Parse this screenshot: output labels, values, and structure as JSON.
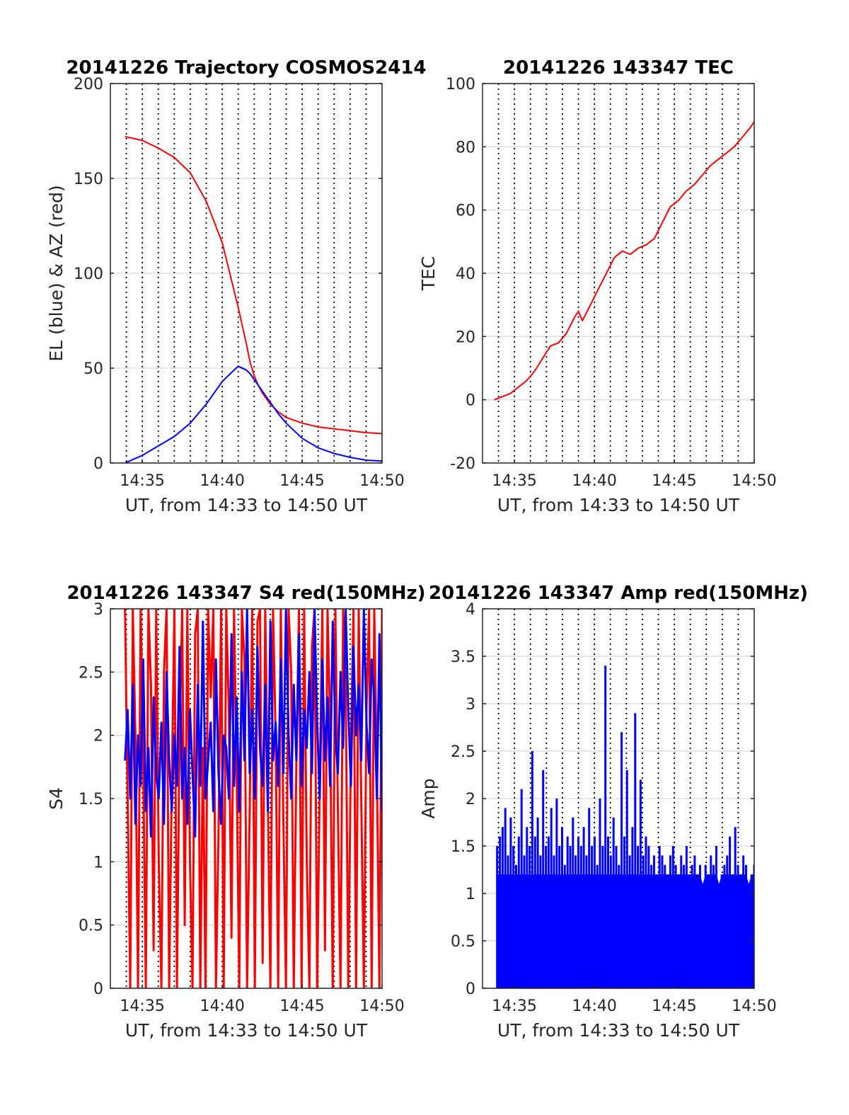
{
  "chart_data": [
    {
      "id": "trajectory",
      "type": "line",
      "title": "20141226 Trajectory COSMOS2414",
      "xlabel": "UT, from 14:33 to 14:50 UT",
      "ylabel": "EL (blue) & AZ (red)",
      "xlim": [
        14.55,
        14.8333
      ],
      "ylim": [
        0,
        200
      ],
      "xticks": [
        14.5833,
        14.6667,
        14.75,
        14.8333
      ],
      "xticklabels": [
        "14:35",
        "14:40",
        "14:45",
        "14:50"
      ],
      "yticks": [
        0,
        50,
        100,
        150,
        200
      ],
      "yticklabels": [
        "0",
        "50",
        "100",
        "150",
        "200"
      ],
      "grid": true,
      "series": [
        {
          "color": "#ff0000",
          "x": [
            14.5653,
            14.5833,
            14.6,
            14.6167,
            14.6333,
            14.65,
            14.6667,
            14.6833,
            14.6917,
            14.6958,
            14.7,
            14.7042,
            14.7083,
            14.7167,
            14.725,
            14.7333,
            14.75,
            14.7667,
            14.7833,
            14.8,
            14.8167,
            14.8333
          ],
          "values": [
            172,
            170,
            166,
            161,
            153,
            138,
            116,
            82,
            63,
            53,
            46,
            41,
            37,
            31,
            27,
            24,
            21,
            19,
            18,
            17,
            16,
            15.5
          ]
        },
        {
          "color": "#0000ff",
          "x": [
            14.5653,
            14.5833,
            14.6,
            14.6167,
            14.6333,
            14.65,
            14.6667,
            14.675,
            14.6833,
            14.6917,
            14.6958,
            14.7,
            14.7083,
            14.7167,
            14.725,
            14.7333,
            14.75,
            14.7667,
            14.7833,
            14.8,
            14.8167,
            14.8333
          ],
          "values": [
            0,
            4,
            9,
            14,
            21,
            31,
            43,
            47,
            51,
            49,
            47,
            44,
            38,
            32,
            26,
            21,
            13,
            8,
            5,
            3,
            1.5,
            1
          ]
        }
      ]
    },
    {
      "id": "tec",
      "type": "line",
      "title": "20141226 143347 TEC",
      "xlabel": "UT, from 14:33 to 14:50 UT",
      "ylabel": "TEC",
      "xlim": [
        14.55,
        14.8333
      ],
      "ylim": [
        -20,
        100
      ],
      "xticks": [
        14.5833,
        14.6667,
        14.75,
        14.8333
      ],
      "xticklabels": [
        "14:35",
        "14:40",
        "14:45",
        "14:50"
      ],
      "yticks": [
        -20,
        0,
        20,
        40,
        60,
        80,
        100
      ],
      "yticklabels": [
        "-20",
        "0",
        "20",
        "40",
        "60",
        "80",
        "100"
      ],
      "grid": true,
      "series": [
        {
          "color": "#ff0000",
          "x": [
            14.5625,
            14.5708,
            14.5792,
            14.5875,
            14.5958,
            14.6042,
            14.6125,
            14.6208,
            14.6292,
            14.6375,
            14.6458,
            14.65,
            14.6542,
            14.6625,
            14.6708,
            14.6792,
            14.6875,
            14.6958,
            14.7042,
            14.7125,
            14.7208,
            14.7292,
            14.7375,
            14.7458,
            14.7542,
            14.7625,
            14.7708,
            14.7792,
            14.7875,
            14.7958,
            14.8042,
            14.8125,
            14.8208,
            14.8292,
            14.8333
          ],
          "values": [
            0,
            1,
            2,
            4,
            6,
            9,
            13,
            17,
            18,
            21,
            26,
            28,
            25,
            30,
            35,
            40,
            45,
            47,
            46,
            48,
            49,
            51,
            56,
            61,
            63,
            66,
            68,
            71,
            74,
            76,
            78,
            80,
            83,
            86,
            88
          ]
        }
      ]
    },
    {
      "id": "s4",
      "type": "line",
      "title": "20141226 143347 S4 red(150MHz)",
      "xlabel": "UT, from 14:33 to 14:50 UT",
      "ylabel": "S4",
      "xlim": [
        14.55,
        14.8333
      ],
      "ylim": [
        0,
        3
      ],
      "xticks": [
        14.5833,
        14.6667,
        14.75,
        14.8333
      ],
      "xticklabels": [
        "14:35",
        "14:40",
        "14:45",
        "14:50"
      ],
      "yticks": [
        0,
        0.5,
        1,
        1.5,
        2,
        2.5,
        3
      ],
      "yticklabels": [
        "0",
        "0.5",
        "1",
        "1.5",
        "2",
        "2.5",
        "3"
      ],
      "grid": true,
      "series": [
        {
          "color": "#ff0000",
          "x_start": 14.5653,
          "x_end": 14.8333,
          "values": [
            3,
            1.5,
            0,
            3,
            2,
            0,
            3,
            1.8,
            0,
            3,
            2.4,
            0.3,
            3,
            1,
            0,
            2.5,
            3,
            0,
            1.6,
            3,
            0,
            2,
            3,
            0.5,
            3,
            1,
            0,
            2.8,
            3,
            0,
            1.9,
            0,
            3,
            2.3,
            3,
            0,
            1.2,
            3,
            0,
            3,
            2.2,
            0.4,
            3,
            1.7,
            0,
            3,
            2.6,
            0,
            1.4,
            3,
            0,
            2.9,
            3,
            0.2,
            3,
            1.5,
            0,
            3,
            2,
            0,
            3,
            1.3,
            0,
            3,
            2.5,
            0,
            1.8,
            3,
            0,
            3,
            1,
            0,
            2.7,
            3,
            0,
            1.6,
            3,
            0.3,
            3,
            2.1,
            0,
            3,
            1.4,
            0,
            3,
            2.4,
            0,
            1.9,
            3,
            0,
            3,
            1.5,
            0,
            2.2,
            3,
            0,
            3,
            1.7,
            0,
            3
          ]
        },
        {
          "color": "#0000ff",
          "x_start": 14.5653,
          "x_end": 14.8333,
          "values": [
            1.8,
            2.2,
            1.5,
            2.4,
            1.3,
            2,
            1.6,
            2.6,
            1.4,
            1.9,
            1.2,
            2.3,
            1.7,
            1.5,
            2.1,
            1.3,
            2.5,
            1.8,
            1.4,
            2,
            1.6,
            2.7,
            1.5,
            1.9,
            1.3,
            2.2,
            1.7,
            1.2,
            2.4,
            1.6,
            2.9,
            1.5,
            1.8,
            2.1,
            1.4,
            2.6,
            1.7,
            1.3,
            2,
            1.9,
            1.5,
            2.8,
            1.6,
            2.3,
            1.4,
            2.5,
            1.8,
            3,
            1.7,
            2.2,
            1.5,
            2.7,
            1.9,
            1.6,
            2.4,
            1.4,
            2.9,
            1.8,
            2.1,
            1.6,
            2.6,
            1.7,
            3,
            2,
            1.5,
            2.4,
            1.8,
            2.8,
            1.6,
            2.2,
            1.9,
            2.5,
            1.7,
            3,
            2.1,
            1.5,
            2.6,
            1.8,
            2.3,
            1.6,
            2.9,
            2,
            1.7,
            2.5,
            1.9,
            3,
            2.2,
            1.6,
            2.7,
            2,
            2.4,
            1.8,
            3,
            2.1,
            1.7,
            2.6,
            2.3,
            1.5,
            2.8,
            1.4
          ]
        }
      ]
    },
    {
      "id": "amp",
      "type": "line",
      "title": "20141226 143347 Amp red(150MHz)",
      "xlabel": "UT, from 14:33 to 14:50 UT",
      "ylabel": "Amp",
      "xlim": [
        14.55,
        14.8333
      ],
      "ylim": [
        0,
        4
      ],
      "xticks": [
        14.5833,
        14.6667,
        14.75,
        14.8333
      ],
      "xticklabels": [
        "14:35",
        "14:40",
        "14:45",
        "14:50"
      ],
      "yticks": [
        0,
        0.5,
        1,
        1.5,
        2,
        2.5,
        3,
        3.5,
        4
      ],
      "yticklabels": [
        "0",
        "0.5",
        "1",
        "1.5",
        "2",
        "2.5",
        "3",
        "3.5",
        "4"
      ],
      "grid": true,
      "series": [
        {
          "color": "#0000ff",
          "x_start": 14.5653,
          "x_end": 14.8333,
          "values": [
            1.5,
            1.6,
            1.7,
            1.9,
            1.4,
            1.8,
            1.5,
            1.3,
            1.6,
            2.1,
            1.4,
            1.7,
            1.5,
            2.5,
            1.6,
            1.8,
            1.4,
            2.3,
            1.5,
            1.6,
            1.9,
            1.4,
            2,
            1.5,
            1.7,
            1.3,
            1.6,
            1.5,
            1.8,
            1.4,
            1.6,
            1.5,
            1.7,
            1.4,
            1.9,
            1.5,
            1.6,
            1.3,
            2,
            1.5,
            3.4,
            1.6,
            1.4,
            1.8,
            1.5,
            1.3,
            2.7,
            1.6,
            2.3,
            1.4,
            1.7,
            2.9,
            1.5,
            2.2,
            1.4,
            1.6,
            1.5,
            1.3,
            1.4,
            1.2,
            1.5,
            1.4,
            1.3,
            1.2,
            1.4,
            1.5,
            1.3,
            1.2,
            1.4,
            1.3,
            1.5,
            1.2,
            1.3,
            1.4,
            1.2,
            1.3,
            1.1,
            1.3,
            1.2,
            1.4,
            1.3,
            1.5,
            1.1,
            1.2,
            1.3,
            1.4,
            1.6,
            1.2,
            1.7,
            1.3,
            1.2,
            1.4,
            1.3,
            1.1,
            1.2,
            1.3
          ]
        }
      ]
    }
  ]
}
